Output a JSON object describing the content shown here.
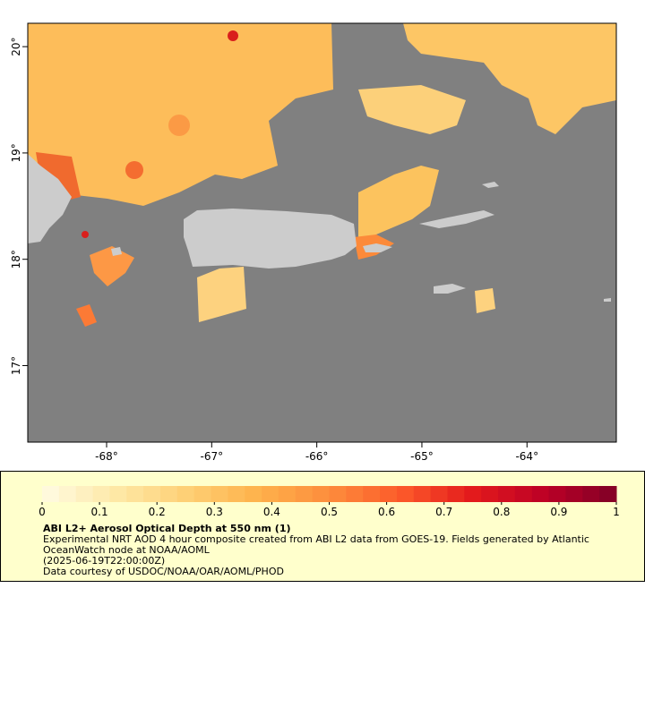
{
  "map": {
    "xlim": [
      -68.75,
      -63.15
    ],
    "xticks": [
      {
        "value": -68,
        "label": "-68°"
      },
      {
        "value": -67,
        "label": "-67°"
      },
      {
        "value": -66,
        "label": "-66°"
      },
      {
        "value": -65,
        "label": "-65°"
      },
      {
        "value": -64,
        "label": "-64°"
      }
    ],
    "ylim": [
      16.28,
      20.22
    ],
    "yticks": [
      {
        "value": 17,
        "label": "17°"
      },
      {
        "value": 18,
        "label": "18°"
      },
      {
        "value": 19,
        "label": "19°"
      },
      {
        "value": 20,
        "label": "20°"
      }
    ]
  },
  "colorbar": {
    "range": [
      0,
      1
    ],
    "ticks": [
      0,
      0.1,
      0.2,
      0.3,
      0.4,
      0.5,
      0.6,
      0.7,
      0.8,
      0.9,
      1
    ],
    "colors": [
      "#fffbe3",
      "#fee9a8",
      "#fed076",
      "#feb24c",
      "#fd8d3c",
      "#fc5a2a",
      "#e31a1c",
      "#bd0026",
      "#800026"
    ]
  },
  "caption": {
    "title": "ABI L2+ Aerosol Optical Depth at 550 nm (1)",
    "lines": [
      "Experimental NRT AOD 4 hour composite created from ABI L2 data from GOES-19. Fields generated by Atlantic",
      "OceanWatch node at NOAA/AOML",
      "(2025-06-19T22:00:00Z)",
      "Data courtesy of USDOC/NOAA/OAR/AOML/PHOD"
    ]
  }
}
